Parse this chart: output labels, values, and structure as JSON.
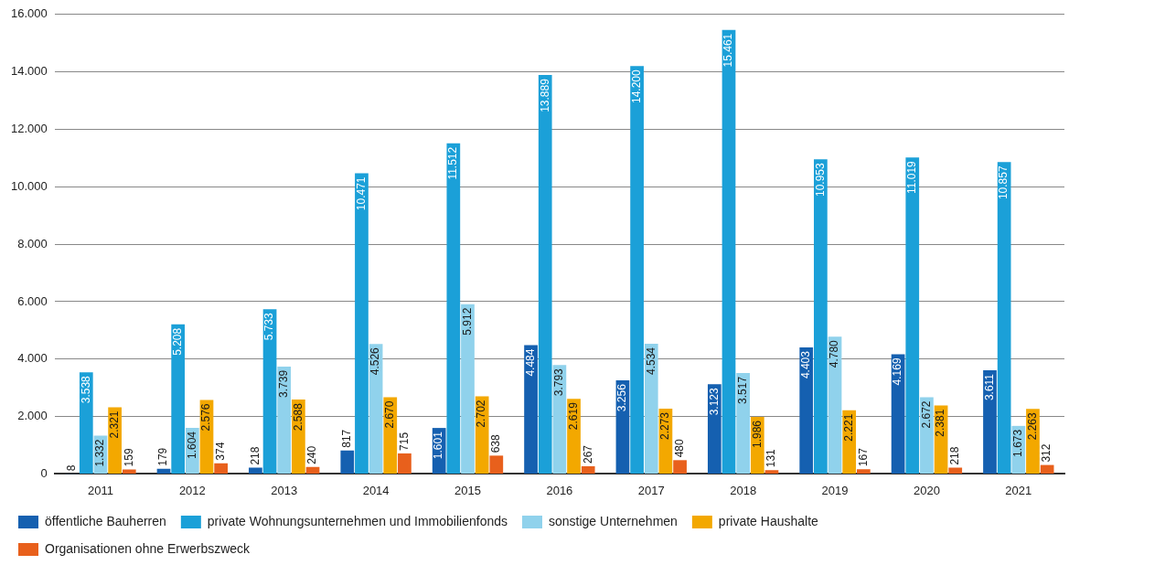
{
  "chart_data": {
    "type": "bar",
    "categories": [
      "2011",
      "2012",
      "2013",
      "2014",
      "2015",
      "2016",
      "2017",
      "2018",
      "2019",
      "2020",
      "2021"
    ],
    "series": [
      {
        "name": "öffentliche Bauherren",
        "color": "#1560b0",
        "values": [
          8,
          179,
          218,
          817,
          1601,
          4484,
          3256,
          3123,
          4403,
          4169,
          3611
        ],
        "value_labels": [
          "8",
          "179",
          "218",
          "817",
          "1.601",
          "4.484",
          "3.256",
          "3.123",
          "4.403",
          "4.169",
          "3.611"
        ]
      },
      {
        "name": "private Wohnungsunternehmen und Immobilienfonds",
        "color": "#1ba0d8",
        "values": [
          3538,
          5208,
          5733,
          10471,
          11512,
          13889,
          14200,
          15461,
          10953,
          11019,
          10857
        ],
        "value_labels": [
          "3.538",
          "5.208",
          "5.733",
          "10.471",
          "11.512",
          "13.889",
          "14.200",
          "15.461",
          "10.953",
          "11.019",
          "10.857"
        ]
      },
      {
        "name": "sonstige Unternehmen",
        "color": "#90d2ec",
        "values": [
          1332,
          1604,
          3739,
          4526,
          5912,
          3793,
          4534,
          3517,
          4780,
          2672,
          1673
        ],
        "value_labels": [
          "1.332",
          "1.604",
          "3.739",
          "4.526",
          "5.912",
          "3.793",
          "4.534",
          "3.517",
          "4.780",
          "2.672",
          "1.673"
        ]
      },
      {
        "name": "private Haushalte",
        "color": "#f3a800",
        "values": [
          2321,
          2576,
          2588,
          2670,
          2702,
          2619,
          2273,
          1986,
          2221,
          2381,
          2263
        ],
        "value_labels": [
          "2.321",
          "2.576",
          "2.588",
          "2.670",
          "2.702",
          "2.619",
          "2.273",
          "1.986",
          "2.221",
          "2.381",
          "2.263"
        ]
      },
      {
        "name": "Organisationen ohne Erwerbszweck",
        "color": "#e8601c",
        "values": [
          159,
          374,
          240,
          715,
          638,
          267,
          480,
          131,
          167,
          218,
          312
        ],
        "value_labels": [
          "159",
          "374",
          "240",
          "715",
          "638",
          "267",
          "480",
          "131",
          "167",
          "218",
          "312"
        ]
      }
    ],
    "ylim": [
      0,
      16000
    ],
    "yticks": [
      {
        "value": 0,
        "label": "0"
      },
      {
        "value": 2000,
        "label": "2.000"
      },
      {
        "value": 4000,
        "label": "4.000"
      },
      {
        "value": 6000,
        "label": "6.000"
      },
      {
        "value": 8000,
        "label": "8.000"
      },
      {
        "value": 10000,
        "label": "10.000"
      },
      {
        "value": 12000,
        "label": "12.000"
      },
      {
        "value": 14000,
        "label": "14.000"
      },
      {
        "value": 16000,
        "label": "16.000"
      }
    ],
    "grid": "y",
    "legend": "bottom"
  }
}
